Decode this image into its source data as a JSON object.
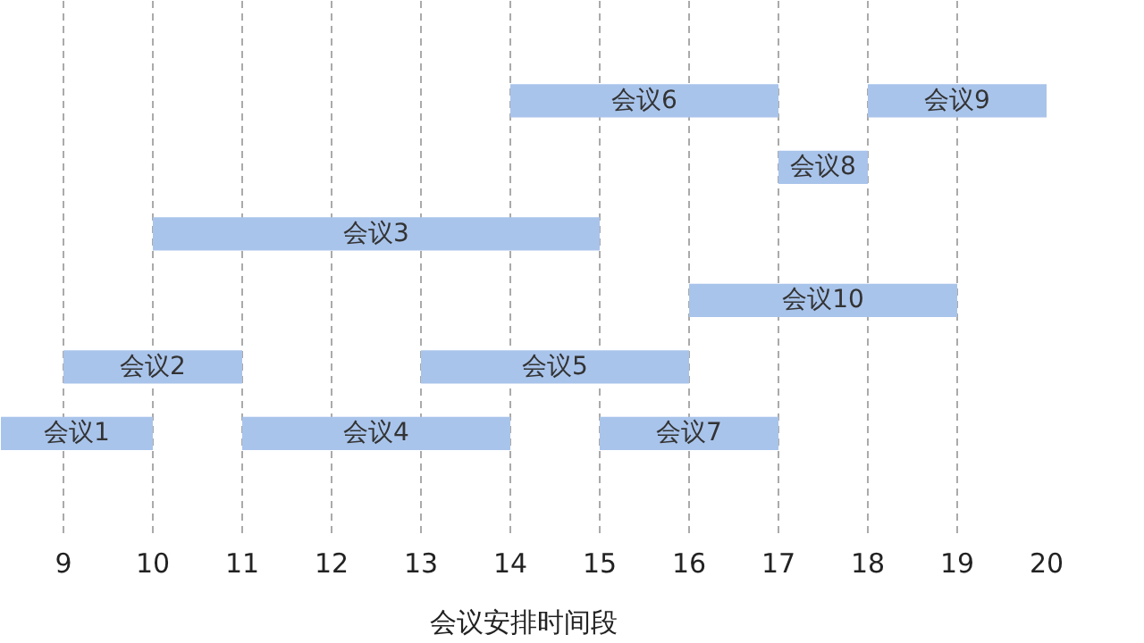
{
  "chart_data": {
    "type": "bar",
    "orientation": "horizontal",
    "xlabel": "会议安排时间段",
    "categories": [
      null,
      null,
      null,
      null,
      null,
      null,
      null,
      null
    ],
    "series": [
      {
        "color": "#a9c4eb",
        "base": [
          null,
          14,
          17,
          10,
          16,
          9,
          8.3,
          null
        ],
        "values": [
          null,
          3,
          1,
          5,
          3,
          2,
          1.7,
          null
        ],
        "value_labels": [
          null,
          "会议6",
          "会议8",
          "会议3",
          "会议10",
          "会议2",
          "会议1",
          null
        ]
      },
      {
        "color": "#a9c4eb",
        "base": [
          null,
          18,
          null,
          null,
          null,
          13,
          11,
          null
        ],
        "values": [
          null,
          2,
          null,
          null,
          null,
          3,
          3,
          null
        ],
        "value_labels": [
          null,
          "会议9",
          null,
          null,
          null,
          "会议5",
          "会议4",
          null
        ]
      },
      {
        "color": "#a9c4eb",
        "base": [
          null,
          null,
          null,
          null,
          null,
          null,
          15,
          null
        ],
        "values": [
          null,
          null,
          null,
          null,
          null,
          null,
          2,
          null
        ],
        "value_labels": [
          null,
          null,
          null,
          null,
          null,
          null,
          "会议7",
          null
        ]
      }
    ],
    "xlim": [
      8.3,
      20
    ],
    "xticks": [
      9,
      10,
      11,
      12,
      13,
      14,
      15,
      16,
      17,
      18,
      19,
      20
    ],
    "grid": "x",
    "tick_labels": "x"
  }
}
